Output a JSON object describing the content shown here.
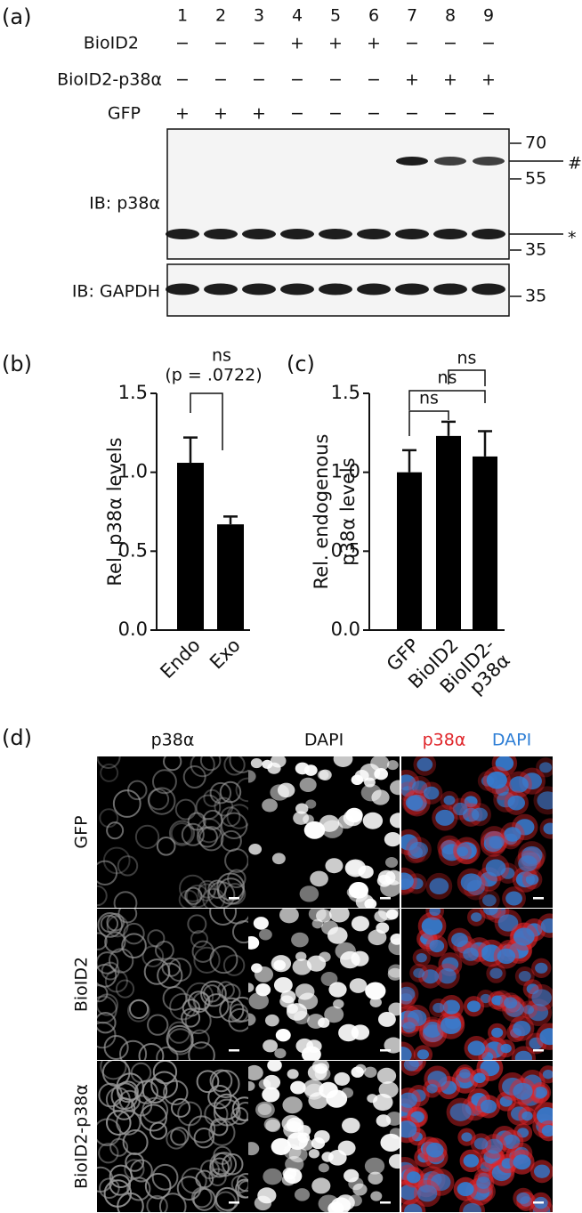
{
  "panels": {
    "a": "(a)",
    "b": "(b)",
    "c": "(c)",
    "d": "(d)"
  },
  "blot": {
    "lanes": [
      1,
      2,
      3,
      4,
      5,
      6,
      7,
      8,
      9
    ],
    "rows": [
      {
        "label": "BioID2",
        "signs": [
          "−",
          "−",
          "−",
          "+",
          "+",
          "+",
          "−",
          "−",
          "−"
        ]
      },
      {
        "label": "BioID2-p38α",
        "signs": [
          "−",
          "−",
          "−",
          "−",
          "−",
          "−",
          "+",
          "+",
          "+"
        ]
      },
      {
        "label": "GFP",
        "signs": [
          "+",
          "+",
          "+",
          "−",
          "−",
          "−",
          "−",
          "−",
          "−"
        ]
      }
    ],
    "top_label": "IB: p38α",
    "bottom_label": "IB: GAPDH",
    "top_markers": [
      "70",
      "55",
      "35"
    ],
    "bottom_markers": [
      "35"
    ],
    "symbols": [
      "#",
      "*"
    ]
  },
  "chart_data": [
    {
      "type": "bar",
      "ylabel": "Rel. p38α levels",
      "categories": [
        "Endo",
        "Exo"
      ],
      "values": [
        1.06,
        0.67
      ],
      "errors": [
        0.16,
        0.05
      ],
      "color": "#000000",
      "ylim": [
        0,
        1.5
      ],
      "yticks": [
        {
          "value": 0,
          "label": "0.0"
        },
        {
          "value": 0.5,
          "label": "0.5"
        },
        {
          "value": 1,
          "label": "1.0"
        },
        {
          "value": 1.5,
          "label": "1.5"
        }
      ],
      "annotations": [
        "ns",
        "(p = .0722)"
      ]
    },
    {
      "type": "bar",
      "ylabel": [
        "Rel. endogenous",
        "p38α levels"
      ],
      "categories": [
        "GFP",
        "BioID2",
        "BioID2-p38α"
      ],
      "values": [
        1.0,
        1.23,
        1.1
      ],
      "errors": [
        0.14,
        0.09,
        0.16
      ],
      "color": "#000000",
      "ylim": [
        0,
        1.5
      ],
      "yticks": [
        {
          "value": 0,
          "label": "0.0"
        },
        {
          "value": 0.5,
          "label": "0.5"
        },
        {
          "value": 1,
          "label": "1.0"
        },
        {
          "value": 1.5,
          "label": "1.5"
        }
      ],
      "annotations": [
        "ns",
        "ns",
        "ns"
      ]
    }
  ],
  "microscopy": {
    "columns": [
      "p38α",
      "DAPI"
    ],
    "merge": [
      "p38α",
      "DAPI"
    ],
    "merge_colors": [
      "#e0262b",
      "#2f7fd6"
    ],
    "rows": [
      "GFP",
      "BioID2",
      "BioID2-p38α"
    ]
  }
}
